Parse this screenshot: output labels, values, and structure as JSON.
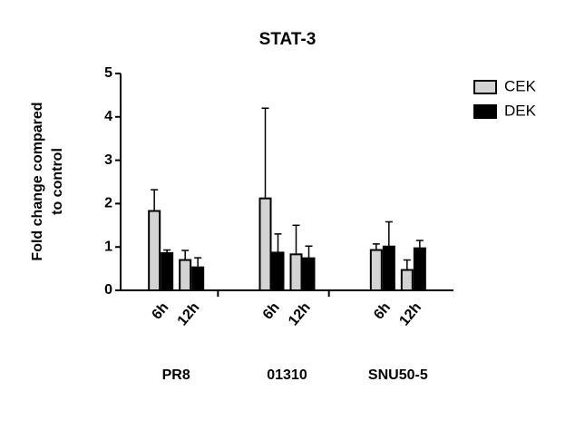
{
  "chart_data": {
    "type": "bar",
    "title": "STAT-3",
    "y_label": "Fold change compared\nto control",
    "groups": [
      "PR8",
      "01310",
      "SNU50-5"
    ],
    "categories": [
      "6h",
      "12h",
      "6h",
      "12h",
      "6h",
      "12h"
    ],
    "series": [
      {
        "name": "CEK",
        "color": "#d3d3d3",
        "values": [
          1.83,
          0.7,
          2.12,
          0.83,
          0.93,
          0.47
        ],
        "errors": [
          0.49,
          0.22,
          2.08,
          0.67,
          0.14,
          0.23
        ]
      },
      {
        "name": "DEK",
        "color": "#000000",
        "values": [
          0.86,
          0.53,
          0.87,
          0.74,
          1.01,
          0.97
        ],
        "errors": [
          0.07,
          0.22,
          0.43,
          0.28,
          0.57,
          0.18
        ]
      }
    ],
    "ylim": [
      0,
      5
    ],
    "yticks": [
      0,
      1,
      2,
      3,
      4,
      5
    ],
    "legend": "upper right"
  }
}
